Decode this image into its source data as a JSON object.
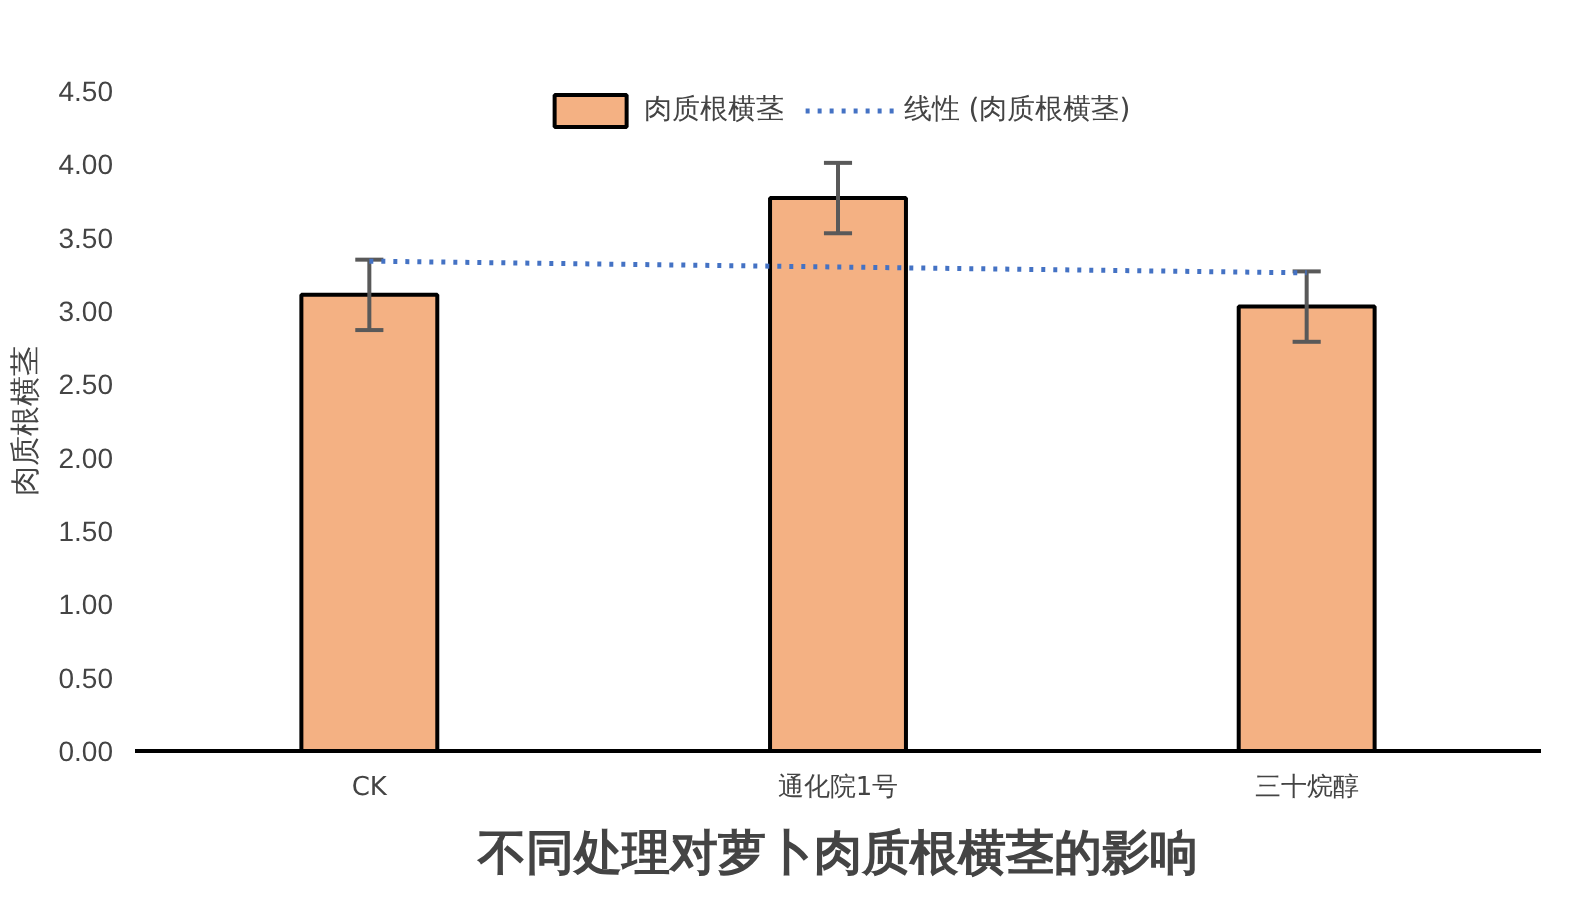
{
  "chart_data": {
    "type": "bar",
    "title": "不同处理对萝卜肉质根横茎的影响",
    "ylabel": "肉质根横茎",
    "categories": [
      "CK",
      "通化院1号",
      "三十烷醇"
    ],
    "series": [
      {
        "name": "肉质根横茎",
        "color": "#f4b183",
        "values": [
          3.11,
          3.77,
          3.03
        ],
        "errors": [
          0.24,
          0.24,
          0.24
        ]
      },
      {
        "name": "线性 (肉质根横茎)",
        "type": "line",
        "color": "#4472c4",
        "line_style": "dotted",
        "values": [
          3.34,
          3.3,
          3.26
        ]
      }
    ],
    "ylim": [
      0,
      4.5
    ],
    "yticks": [
      {
        "value": 0,
        "label": "0.00"
      },
      {
        "value": 0.5,
        "label": "0.50"
      },
      {
        "value": 1,
        "label": "1.00"
      },
      {
        "value": 1.5,
        "label": "1.50"
      },
      {
        "value": 2,
        "label": "2.00"
      },
      {
        "value": 2.5,
        "label": "2.50"
      },
      {
        "value": 3,
        "label": "3.00"
      },
      {
        "value": 3.5,
        "label": "3.50"
      },
      {
        "value": 4,
        "label": "4.00"
      },
      {
        "value": 4.5,
        "label": "4.50"
      }
    ],
    "grid": false,
    "legend": "top",
    "marker": "none"
  }
}
